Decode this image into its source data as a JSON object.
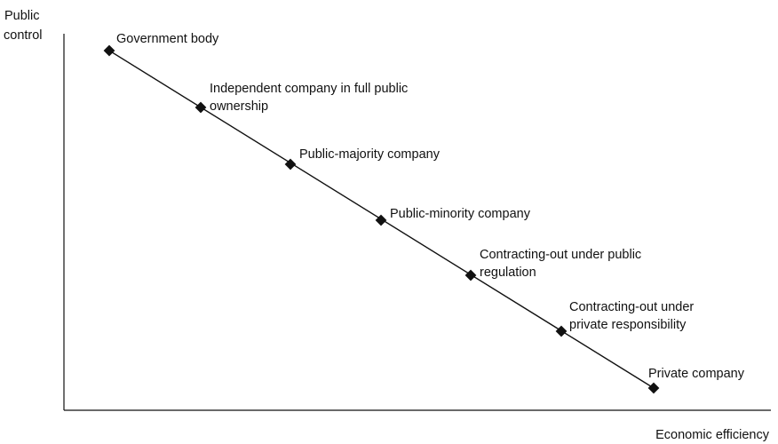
{
  "y_axis_label": [
    "Public",
    "control"
  ],
  "x_axis_label": "Economic efficiency",
  "nodes": [
    {
      "lines": [
        "Government body"
      ]
    },
    {
      "lines": [
        "Independent company in full public",
        "ownership"
      ]
    },
    {
      "lines": [
        "Public-majority company"
      ]
    },
    {
      "lines": [
        "Public-minority company"
      ]
    },
    {
      "lines": [
        "Contracting-out under public",
        "regulation"
      ]
    },
    {
      "lines": [
        "Contracting-out under",
        "private responsibility"
      ]
    },
    {
      "lines": [
        "Private company"
      ]
    }
  ]
}
